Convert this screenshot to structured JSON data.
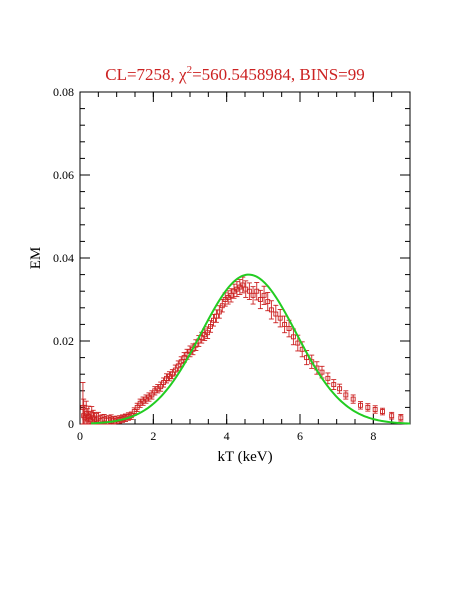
{
  "chart_data": {
    "type": "scatter",
    "title_parts": {
      "prefix": "CL=7258, ",
      "chi": "χ",
      "sup": "2",
      "suffix": "=560.5458984, BINS=99"
    },
    "xlabel": "kT (keV)",
    "ylabel": "EM",
    "xlim": [
      0,
      9
    ],
    "ylim": [
      0,
      0.08
    ],
    "xticks": [
      0,
      2,
      4,
      6,
      8
    ],
    "xtick_labels": [
      "0",
      "2",
      "4",
      "6",
      "8"
    ],
    "yticks": [
      0,
      0.02,
      0.04,
      0.06,
      0.08
    ],
    "ytick_labels": [
      "0",
      "0.02",
      "0.04",
      "0.06",
      "0.08"
    ],
    "grid": false,
    "colors": {
      "points": "#cc2222",
      "model": "#22cc22",
      "title": "#cc2222",
      "axes": "#000000"
    },
    "series": [
      {
        "kind": "points_with_errorbars",
        "x": [
          0.08,
          0.1,
          0.13,
          0.17,
          0.2,
          0.24,
          0.28,
          0.32,
          0.36,
          0.4,
          0.45,
          0.5,
          0.55,
          0.6,
          0.66,
          0.72,
          0.78,
          0.85,
          0.92,
          1.0,
          1.08,
          1.16,
          1.24,
          1.32,
          1.4,
          1.48,
          1.56,
          1.64,
          1.72,
          1.8,
          1.88,
          1.96,
          2.04,
          2.12,
          2.2,
          2.28,
          2.36,
          2.44,
          2.52,
          2.6,
          2.68,
          2.76,
          2.84,
          2.92,
          3.0,
          3.08,
          3.16,
          3.24,
          3.32,
          3.4,
          3.48,
          3.56,
          3.64,
          3.72,
          3.8,
          3.88,
          3.96,
          4.04,
          4.12,
          4.2,
          4.28,
          4.36,
          4.44,
          4.52,
          4.62,
          4.72,
          4.82,
          4.92,
          5.02,
          5.12,
          5.22,
          5.34,
          5.46,
          5.58,
          5.7,
          5.82,
          5.94,
          6.06,
          6.18,
          6.32,
          6.46,
          6.6,
          6.76,
          6.92,
          7.08,
          7.25,
          7.45,
          7.65,
          7.85,
          8.05,
          8.25,
          8.5,
          8.75
        ],
        "y": [
          0.004,
          0.002,
          0.0015,
          0.0025,
          0.0012,
          0.0018,
          0.001,
          0.0022,
          0.0015,
          0.0012,
          0.001,
          0.0014,
          0.0008,
          0.001,
          0.0012,
          0.0009,
          0.001,
          0.0012,
          0.0009,
          0.001,
          0.0011,
          0.0013,
          0.0015,
          0.0018,
          0.002,
          0.003,
          0.004,
          0.005,
          0.0055,
          0.006,
          0.0065,
          0.007,
          0.008,
          0.0085,
          0.009,
          0.01,
          0.011,
          0.0115,
          0.012,
          0.013,
          0.014,
          0.015,
          0.016,
          0.0168,
          0.0175,
          0.018,
          0.019,
          0.02,
          0.0208,
          0.0215,
          0.022,
          0.0235,
          0.025,
          0.026,
          0.027,
          0.0285,
          0.03,
          0.0305,
          0.031,
          0.032,
          0.0325,
          0.033,
          0.0335,
          0.0325,
          0.032,
          0.031,
          0.032,
          0.03,
          0.031,
          0.0295,
          0.0275,
          0.0265,
          0.0255,
          0.024,
          0.023,
          0.021,
          0.0195,
          0.018,
          0.016,
          0.015,
          0.0135,
          0.0125,
          0.011,
          0.0095,
          0.0085,
          0.007,
          0.006,
          0.0045,
          0.004,
          0.0035,
          0.003,
          0.002,
          0.0015
        ],
        "yerr": [
          0.006,
          0.004,
          0.003,
          0.003,
          0.0025,
          0.0025,
          0.002,
          0.002,
          0.0018,
          0.0016,
          0.0015,
          0.0014,
          0.0012,
          0.0012,
          0.0011,
          0.001,
          0.001,
          0.001,
          0.0009,
          0.0009,
          0.0009,
          0.0009,
          0.0009,
          0.0009,
          0.0009,
          0.0009,
          0.001,
          0.001,
          0.001,
          0.001,
          0.001,
          0.001,
          0.001,
          0.001,
          0.0011,
          0.0011,
          0.0011,
          0.0011,
          0.0011,
          0.0012,
          0.0012,
          0.0012,
          0.0012,
          0.0012,
          0.0013,
          0.0013,
          0.0013,
          0.0013,
          0.0013,
          0.0014,
          0.0014,
          0.0014,
          0.0014,
          0.0015,
          0.0015,
          0.0015,
          0.0016,
          0.0016,
          0.0016,
          0.0017,
          0.0018,
          0.0018,
          0.0019,
          0.002,
          0.002,
          0.0021,
          0.0021,
          0.0022,
          0.0022,
          0.0022,
          0.0022,
          0.0021,
          0.0021,
          0.002,
          0.002,
          0.0019,
          0.0019,
          0.0018,
          0.0017,
          0.0016,
          0.0015,
          0.0014,
          0.0013,
          0.0012,
          0.0011,
          0.001,
          0.001,
          0.0009,
          0.0009,
          0.0009,
          0.0008,
          0.0008,
          0.0008
        ]
      },
      {
        "kind": "model_curve",
        "curve": "gaussian",
        "amplitude": 0.036,
        "center": 4.6,
        "sigma": 1.3,
        "x_range": [
          0.3,
          9
        ]
      }
    ]
  }
}
